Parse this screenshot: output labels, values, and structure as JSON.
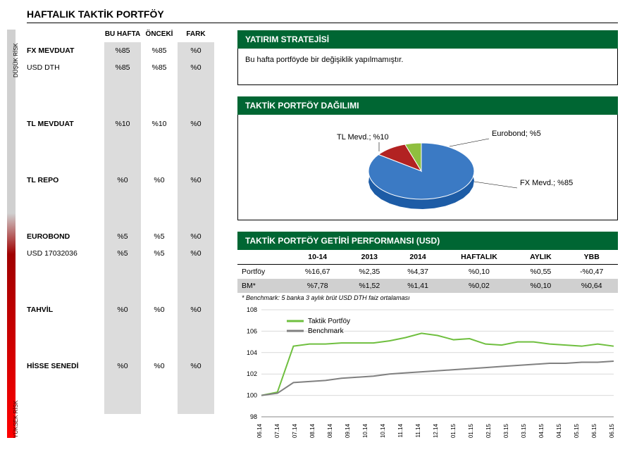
{
  "title": "HAFTALIK TAKTİK PORTFÖY",
  "risk_labels": {
    "low": "DÜŞÜK RİSK",
    "high": "YÜKSEK RİSK"
  },
  "alloc_headers": {
    "this": "BU HAFTA",
    "prev": "ÖNCEKİ",
    "diff": "FARK"
  },
  "alloc": [
    {
      "label": "FX MEVDUAT",
      "this": "%85",
      "prev": "%85",
      "diff": "%0",
      "bold": true
    },
    {
      "label": "USD DTH",
      "this": "%85",
      "prev": "%85",
      "diff": "%0",
      "bold": false,
      "gap_after": true
    },
    {
      "label": "TL MEVDUAT",
      "this": "%10",
      "prev": "%10",
      "diff": "%0",
      "bold": true,
      "gap_after": true
    },
    {
      "label": "TL REPO",
      "this": "%0",
      "prev": "%0",
      "diff": "%0",
      "bold": true,
      "gap_after": true
    },
    {
      "label": "EUROBOND",
      "this": "%5",
      "prev": "%5",
      "diff": "%0",
      "bold": true
    },
    {
      "label": "USD 17032036",
      "this": "%5",
      "prev": "%5",
      "diff": "%0",
      "bold": false,
      "gap_after": true
    },
    {
      "label": "TAHVİL",
      "this": "%0",
      "prev": "%0",
      "diff": "%0",
      "bold": true,
      "gap_after": true
    },
    {
      "label": "HİSSE SENEDİ",
      "this": "%0",
      "prev": "%0",
      "diff": "%0",
      "bold": true,
      "gap_after": true
    }
  ],
  "strategy": {
    "title": "YATIRIM STRATEJİSİ",
    "body": "Bu hafta portföyde bir değişiklik yapılmamıştır."
  },
  "pie": {
    "title": "TAKTİK PORTFÖY DAĞILIMI",
    "slices": [
      {
        "label": "FX Mevd.; %85",
        "value": 85,
        "color": "#3b7ac4"
      },
      {
        "label": "TL Mevd.; %10",
        "value": 10,
        "color": "#b22222"
      },
      {
        "label": "Eurobond; %5",
        "value": 5,
        "color": "#8fbf3f"
      }
    ],
    "fx_label": "FX Mevd.; %85",
    "tl_label": "TL Mevd.; %10",
    "eu_label": "Eurobond; %5"
  },
  "perf": {
    "title": "TAKTİK PORTFÖY GETİRİ PERFORMANSI (USD)",
    "headers": [
      "",
      "10-14",
      "2013",
      "2014",
      "HAFTALIK",
      "AYLIK",
      "YBB"
    ],
    "rows": [
      {
        "label": "Portföy",
        "vals": [
          "%16,67",
          "%2,35",
          "%4,37",
          "%0,10",
          "%0,55",
          "-%0,47"
        ],
        "bm": false
      },
      {
        "label": "BM*",
        "vals": [
          "%7,78",
          "%1,52",
          "%1,41",
          "%0,02",
          "%0,10",
          "%0,64"
        ],
        "bm": true
      }
    ],
    "footnote": "* Benchmark: 5 banka 3 aylık brüt USD DTH faiz ortalaması"
  },
  "chart": {
    "ylim": [
      98,
      108
    ],
    "ytick_step": 2,
    "background_color": "#ffffff",
    "grid_color": "#d9d9d9",
    "xticks": [
      "06.14",
      "07.14",
      "07.14",
      "08.14",
      "08.14",
      "09.14",
      "10.14",
      "10.14",
      "11.14",
      "11.14",
      "12.14",
      "01.15",
      "01.15",
      "02.15",
      "03.15",
      "03.15",
      "04.15",
      "04.15",
      "05.15",
      "06.15",
      "06.15"
    ],
    "series": [
      {
        "name": "Taktik Portföy",
        "color": "#6fbf3f",
        "width": 2,
        "values": [
          100,
          100.3,
          104.6,
          104.8,
          104.8,
          104.9,
          104.9,
          104.9,
          105.1,
          105.4,
          105.8,
          105.6,
          105.2,
          105.3,
          104.8,
          104.7,
          105.0,
          105.0,
          104.8,
          104.7,
          104.6,
          104.8,
          104.6
        ]
      },
      {
        "name": "Benchmark",
        "color": "#808080",
        "width": 2,
        "values": [
          100,
          100.2,
          101.2,
          101.3,
          101.4,
          101.6,
          101.7,
          101.8,
          102.0,
          102.1,
          102.2,
          102.3,
          102.4,
          102.5,
          102.6,
          102.7,
          102.8,
          102.9,
          103.0,
          103.0,
          103.1,
          103.1,
          103.2
        ]
      }
    ],
    "legend": [
      "Taktik Portföy",
      "Benchmark"
    ]
  }
}
